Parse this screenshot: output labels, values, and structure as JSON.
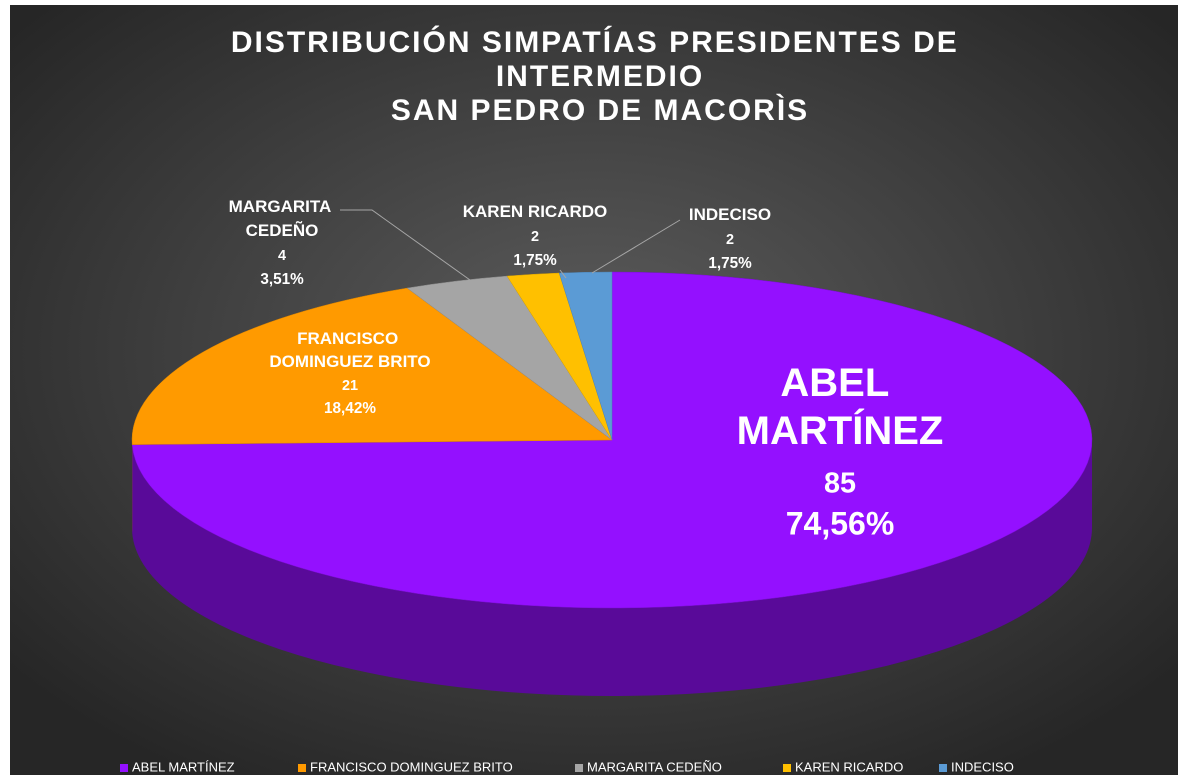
{
  "chart_data": {
    "type": "pie3d",
    "title": "DISTRIBUCIÓN SIMPATÍAS PRESIDENTES DE INTERMEDIO",
    "subtitle": "SAN PEDRO DE MACORÌS",
    "categories": [
      "ABEL MARTÍNEZ",
      "FRANCISCO DOMINGUEZ BRITO",
      "MARGARITA CEDEÑO",
      "KAREN RICARDO",
      "INDECISO"
    ],
    "values": [
      85,
      21,
      4,
      2,
      2
    ],
    "percentages": [
      74.56,
      18.42,
      3.51,
      1.75,
      1.75
    ],
    "percentage_labels": [
      "74,56%",
      "18,42%",
      "3,51%",
      "1,75%",
      "1,75%"
    ],
    "colors": [
      "#9410ff",
      "#ff9a00",
      "#a5a5a5",
      "#ffc000",
      "#5b9bd5"
    ],
    "legend": "bottom"
  }
}
